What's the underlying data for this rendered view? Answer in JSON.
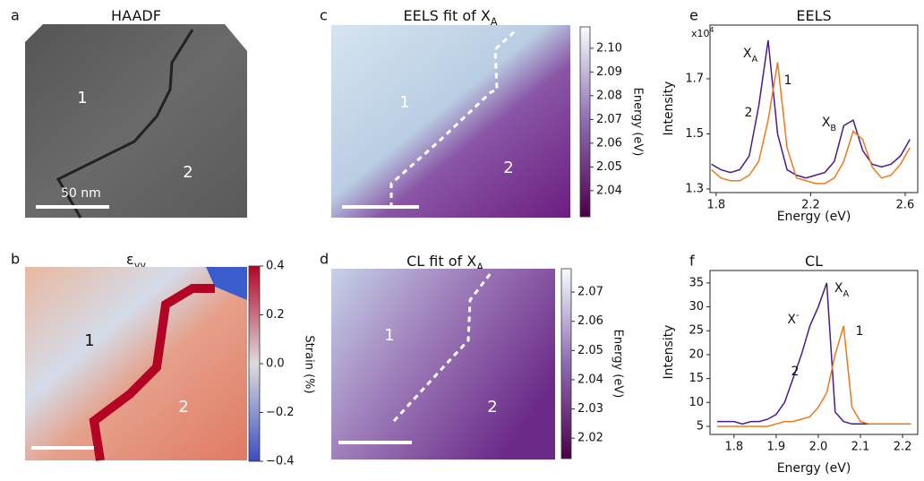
{
  "chart_data": [
    {
      "type": "image",
      "panel": "a",
      "title": "HAADF",
      "annotations": [
        "1",
        "2"
      ],
      "scalebar": "50 nm"
    },
    {
      "type": "heatmap",
      "panel": "b",
      "title": "ε",
      "title_sub": "yy",
      "annotations": [
        "1",
        "2"
      ],
      "colorbar": {
        "label": "Strain (%)",
        "lim": [
          -0.4,
          0.4
        ],
        "colors": [
          "#3b4cc0",
          "#dcdcdc",
          "#b40426"
        ],
        "ticks": [
          0.4,
          0.2,
          {
            "value": 0,
            "label": "0.0"
          },
          {
            "value": -0.2,
            "label": "−0.2"
          },
          {
            "value": -0.4,
            "label": "−0.4"
          }
        ]
      }
    },
    {
      "type": "heatmap",
      "panel": "c",
      "title": "EELS fit of X",
      "title_sub": "A",
      "annotations": [
        "1",
        "2"
      ],
      "colorbar": {
        "label": "Energy (eV)",
        "lim": [
          2.029,
          2.109
        ],
        "colors": [
          "#4d004b",
          "#8c6bb1",
          "#f7fcfd"
        ],
        "ticks": [
          {
            "value": 2.1,
            "label": "2.10"
          },
          2.09,
          2.08,
          2.07,
          2.06,
          2.05,
          2.04
        ]
      }
    },
    {
      "type": "heatmap",
      "panel": "d",
      "title": "CL fit of X",
      "title_sub": "A",
      "annotations": [
        "1",
        "2"
      ],
      "colorbar": {
        "label": "Energy (eV)",
        "lim": [
          2.013,
          2.078
        ],
        "colors": [
          "#4d004b",
          "#8c6bb1",
          "#f7fcfd"
        ],
        "ticks": [
          2.07,
          2.06,
          2.05,
          2.04,
          2.03,
          2.02
        ]
      }
    },
    {
      "type": "line",
      "panel": "e",
      "title": "EELS",
      "xlabel": "Energy (eV)",
      "ylabel": "Intensity",
      "y_scale_label": "x10",
      "y_scale_exp": "4",
      "annotations": [
        {
          "text": "X",
          "sub": "A"
        },
        {
          "text": "1"
        },
        {
          "text": "2"
        },
        {
          "text": "X",
          "sub": "B"
        }
      ],
      "x": [
        1.78,
        1.82,
        1.86,
        1.9,
        1.94,
        1.98,
        2.02,
        2.06,
        2.1,
        2.14,
        2.18,
        2.22,
        2.26,
        2.3,
        2.34,
        2.38,
        2.42,
        2.46,
        2.5,
        2.54,
        2.58,
        2.62
      ],
      "series": [
        {
          "color": "#4b1a8c",
          "values": [
            1.39,
            1.37,
            1.36,
            1.37,
            1.42,
            1.6,
            1.84,
            1.5,
            1.37,
            1.35,
            1.34,
            1.35,
            1.36,
            1.4,
            1.53,
            1.55,
            1.44,
            1.39,
            1.38,
            1.39,
            1.42,
            1.48
          ]
        },
        {
          "color": "#f07818",
          "values": [
            1.37,
            1.34,
            1.33,
            1.33,
            1.35,
            1.4,
            1.55,
            1.76,
            1.45,
            1.34,
            1.33,
            1.32,
            1.32,
            1.34,
            1.4,
            1.51,
            1.48,
            1.38,
            1.34,
            1.35,
            1.39,
            1.45
          ]
        }
      ],
      "xlim": [
        1.774,
        2.653
      ],
      "ylim": [
        1.287,
        1.895
      ],
      "xticks": [
        1.8,
        2.2,
        2.6
      ],
      "yticks": [
        1.3,
        1.5,
        1.7
      ]
    },
    {
      "type": "line",
      "panel": "f",
      "title": "CL",
      "xlabel": "Energy (eV)",
      "ylabel": "Intensity",
      "annotations": [
        {
          "text": "X",
          "sub": "A"
        },
        {
          "text": "X",
          "sup": "-"
        },
        {
          "text": "1"
        },
        {
          "text": "2"
        }
      ],
      "x": [
        1.76,
        1.78,
        1.8,
        1.82,
        1.84,
        1.86,
        1.88,
        1.9,
        1.92,
        1.94,
        1.96,
        1.98,
        2.0,
        2.02,
        2.04,
        2.06,
        2.08,
        2.1,
        2.12,
        2.14,
        2.16,
        2.18,
        2.2,
        2.22
      ],
      "series": [
        {
          "color": "#4b1a8c",
          "values": [
            6,
            6,
            6,
            5.5,
            6,
            6,
            6.5,
            7.5,
            10,
            15,
            20,
            26,
            30,
            35,
            8,
            6,
            5.5,
            5.5,
            5.5,
            5.5,
            5.5,
            5.5,
            5.5,
            5.5
          ]
        },
        {
          "color": "#f07818",
          "values": [
            5,
            5,
            5,
            5,
            5,
            5,
            5,
            5.5,
            6,
            6,
            6.5,
            7,
            9,
            12,
            20,
            26,
            9,
            6,
            5.5,
            5.5,
            5.5,
            5.5,
            5.5,
            5.5
          ]
        }
      ],
      "xlim": [
        1.743,
        2.236
      ],
      "ylim": [
        3.31,
        37.6
      ],
      "xticks": [
        1.8,
        1.9,
        {
          "value": 2,
          "label": "2.0"
        },
        2.1,
        2.2
      ],
      "yticks": [
        5,
        10,
        15,
        20,
        25,
        30,
        35
      ]
    }
  ]
}
